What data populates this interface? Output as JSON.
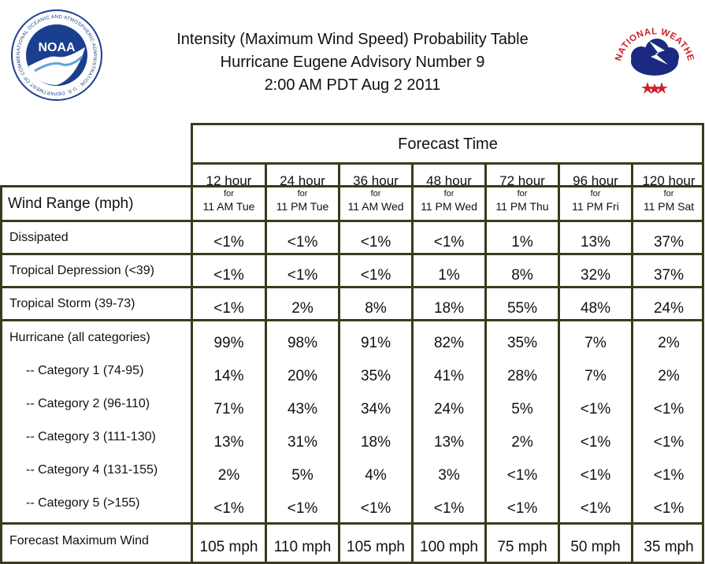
{
  "header": {
    "title_line1": "Intensity (Maximum Wind Speed) Probability Table",
    "title_line2": "Hurricane Eugene Advisory Number 9",
    "title_line3": "2:00 AM PDT Aug 2 2011"
  },
  "logos": {
    "noaa_text": "NOAA",
    "noaa_ring_text": "NATIONAL OCEANIC AND ATMOSPHERIC ADMINISTRATION · U.S. DEPARTMENT OF COMMERCE ·",
    "nws_ring_text": "NATIONAL WEATHER SERVICE"
  },
  "table": {
    "forecast_time_label": "Forecast Time",
    "wind_range_label": "Wind Range (mph)",
    "columns": [
      {
        "hour": "12 hour",
        "for": "for",
        "time": "11 AM Tue"
      },
      {
        "hour": "24 hour",
        "for": "for",
        "time": "11 PM Tue"
      },
      {
        "hour": "36 hour",
        "for": "for",
        "time": "11 AM Wed"
      },
      {
        "hour": "48 hour",
        "for": "for",
        "time": "11 PM Wed"
      },
      {
        "hour": "72 hour",
        "for": "for",
        "time": "11 PM Thu"
      },
      {
        "hour": "96 hour",
        "for": "for",
        "time": "11 PM Fri"
      },
      {
        "hour": "120 hour",
        "for": "for",
        "time": "11 PM Sat"
      }
    ],
    "rows": [
      {
        "label": "Dissipated",
        "values": [
          "<1%",
          "<1%",
          "<1%",
          "<1%",
          "1%",
          "13%",
          "37%"
        ]
      },
      {
        "label": "Tropical Depression (<39)",
        "values": [
          "<1%",
          "<1%",
          "<1%",
          "1%",
          "8%",
          "32%",
          "37%"
        ]
      },
      {
        "label": "Tropical Storm (39-73)",
        "values": [
          "<1%",
          "2%",
          "8%",
          "18%",
          "55%",
          "48%",
          "24%"
        ]
      },
      {
        "label": "Hurricane (all categories)",
        "values": [
          "99%",
          "98%",
          "91%",
          "82%",
          "35%",
          "7%",
          "2%"
        ]
      },
      {
        "label": "-- Category 1 (74-95)",
        "values": [
          "14%",
          "20%",
          "35%",
          "41%",
          "28%",
          "7%",
          "2%"
        ]
      },
      {
        "label": "-- Category 2 (96-110)",
        "values": [
          "71%",
          "43%",
          "34%",
          "24%",
          "5%",
          "<1%",
          "<1%"
        ]
      },
      {
        "label": "-- Category 3 (111-130)",
        "values": [
          "13%",
          "31%",
          "18%",
          "13%",
          "2%",
          "<1%",
          "<1%"
        ]
      },
      {
        "label": "-- Category 4 (131-155)",
        "values": [
          "2%",
          "5%",
          "4%",
          "3%",
          "<1%",
          "<1%",
          "<1%"
        ]
      },
      {
        "label": "-- Category 5 (>155)",
        "values": [
          "<1%",
          "<1%",
          "<1%",
          "<1%",
          "<1%",
          "<1%",
          "<1%"
        ]
      },
      {
        "label": "Forecast Maximum Wind",
        "values": [
          "105 mph",
          "110 mph",
          "105 mph",
          "100 mph",
          "75 mph",
          "50 mph",
          "35 mph"
        ]
      }
    ]
  },
  "colors": {
    "border": "#3a3a1e",
    "noaa_blue": "#1b3f8f",
    "nws_red": "#cc2229",
    "nws_navy": "#1a2a80"
  }
}
